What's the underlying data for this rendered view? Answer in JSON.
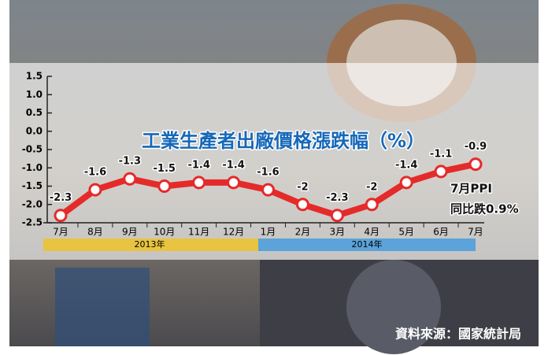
{
  "chart_data": {
    "type": "line",
    "title": "工業生產者出廠價格漲跌幅（%）",
    "categories": [
      "7月",
      "8月",
      "9月",
      "10月",
      "11月",
      "12月",
      "1月",
      "2月",
      "3月",
      "4月",
      "5月",
      "6月",
      "7月"
    ],
    "series": [
      {
        "name": "PPI",
        "color": "#e52a2a",
        "values": [
          -2.3,
          -1.6,
          -1.3,
          -1.5,
          -1.4,
          -1.4,
          -1.6,
          -2.0,
          -2.3,
          -2.0,
          -1.4,
          -1.1,
          -0.9
        ]
      }
    ],
    "ylim": [
      -2.5,
      1.5
    ],
    "yticks": [
      1.5,
      {
        "value": 1.0,
        "label": "1.0"
      },
      0.5,
      {
        "value": 0.0,
        "label": "0.0"
      },
      -0.5,
      {
        "value": -1.0,
        "label": "-1.0"
      },
      -1.5,
      {
        "value": -2.0,
        "label": "-2.0"
      },
      -2.5
    ],
    "periods": [
      "2013年",
      "2014年"
    ],
    "annotation": [
      "7月PPI",
      "同比跌0.9%"
    ],
    "source": "資料來源：國家統計局"
  }
}
